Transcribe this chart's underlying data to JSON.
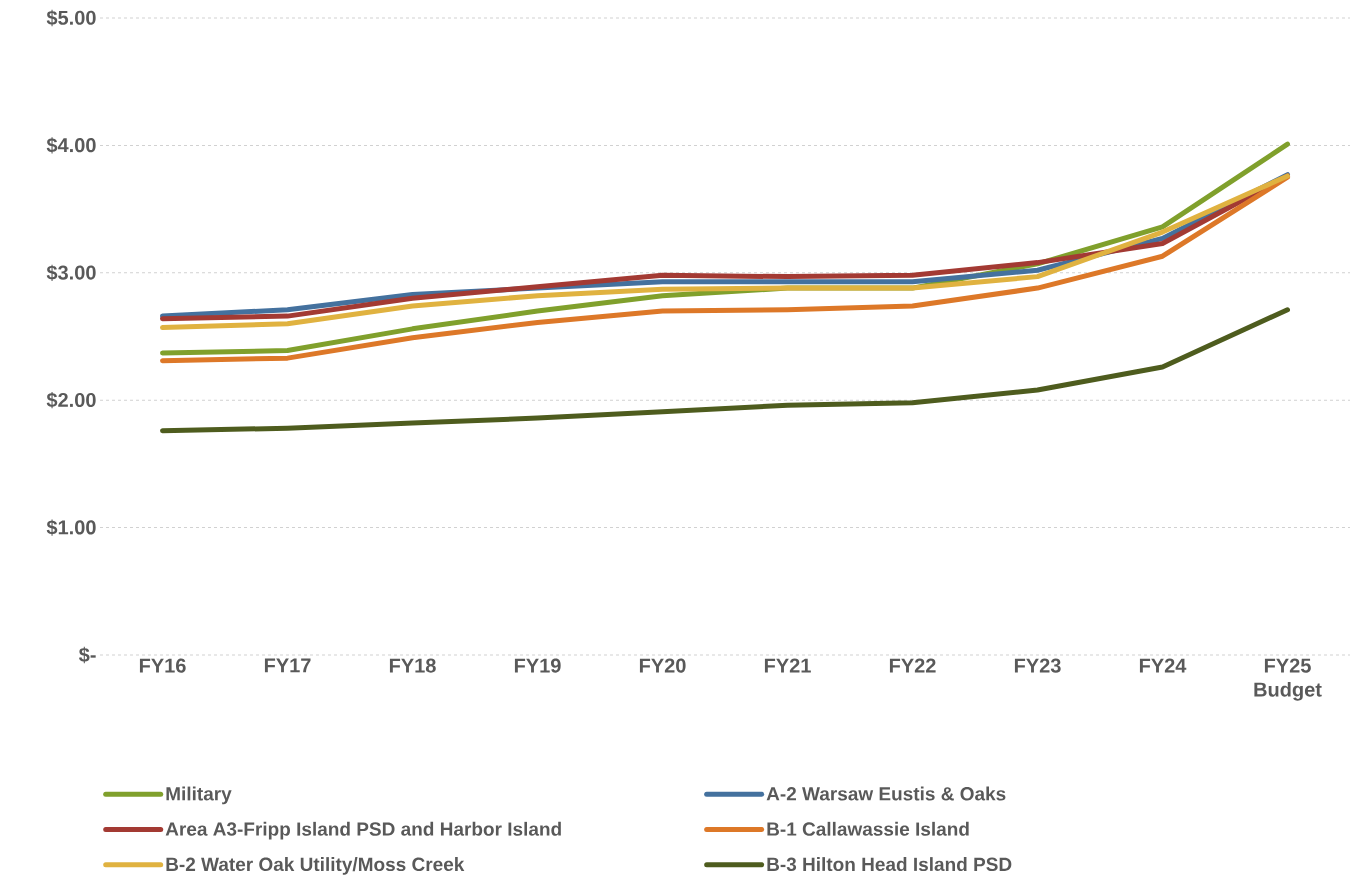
{
  "chart_data": {
    "type": "line",
    "categories": [
      "FY16",
      "FY17",
      "FY18",
      "FY19",
      "FY20",
      "FY21",
      "FY22",
      "FY23",
      "FY24",
      "FY25 Budget"
    ],
    "series": [
      {
        "name": "Military",
        "color": "#80a02c",
        "values": [
          2.37,
          2.39,
          2.56,
          2.7,
          2.82,
          2.88,
          2.88,
          3.07,
          3.36,
          4.01
        ]
      },
      {
        "name": "A-2 Warsaw Eustis & Oaks",
        "color": "#44719e",
        "values": [
          2.66,
          2.71,
          2.83,
          2.88,
          2.93,
          2.93,
          2.93,
          3.02,
          3.27,
          3.77
        ]
      },
      {
        "name": "Area A3-Fripp Island PSD and Harbor Island",
        "color": "#a33a33",
        "values": [
          2.64,
          2.66,
          2.8,
          2.89,
          2.98,
          2.97,
          2.98,
          3.08,
          3.23,
          3.76
        ]
      },
      {
        "name": "B-1 Callawassie Island",
        "color": "#dd7828",
        "values": [
          2.31,
          2.33,
          2.49,
          2.61,
          2.7,
          2.71,
          2.74,
          2.88,
          3.13,
          3.75
        ]
      },
      {
        "name": "B-2 Water Oak Utility/Moss Creek",
        "color": "#e0b240",
        "values": [
          2.57,
          2.6,
          2.74,
          2.82,
          2.87,
          2.88,
          2.88,
          2.97,
          3.32,
          3.76
        ]
      },
      {
        "name": "B-3 Hilton Head Island PSD",
        "color": "#4e5c1e",
        "values": [
          1.76,
          1.78,
          1.82,
          1.86,
          1.91,
          1.96,
          1.98,
          2.08,
          2.26,
          2.71
        ]
      }
    ],
    "ylim": [
      0,
      5
    ],
    "yticks": [
      {
        "value": 0,
        "label": "$-"
      },
      {
        "value": 1,
        "label": "$1.00"
      },
      {
        "value": 2,
        "label": "$2.00"
      },
      {
        "value": 3,
        "label": "$3.00"
      },
      {
        "value": 4,
        "label": "$4.00"
      },
      {
        "value": 5,
        "label": "$5.00"
      }
    ],
    "grid": "y",
    "legend": "bottom"
  }
}
